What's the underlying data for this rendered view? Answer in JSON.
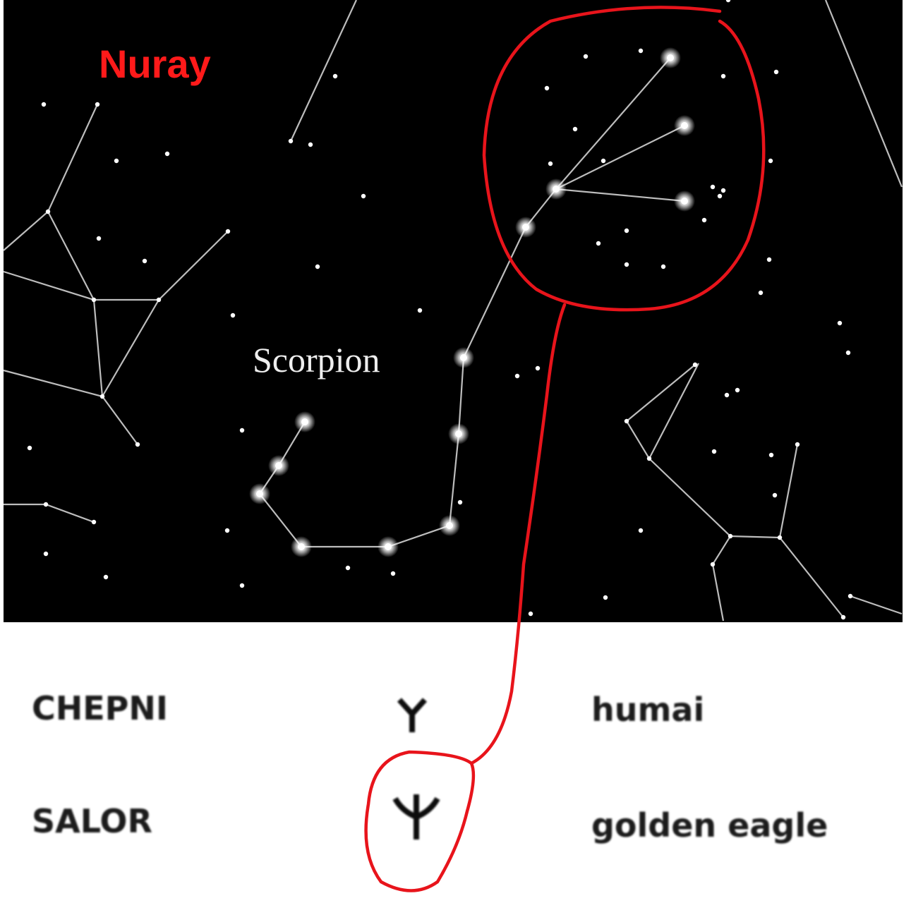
{
  "title": "Nuray",
  "constellation_label": "Scorpion",
  "table": {
    "rows": [
      [
        "CHEPNI",
        "humai"
      ],
      [
        "SALOR",
        "golden eagle"
      ]
    ]
  }
}
